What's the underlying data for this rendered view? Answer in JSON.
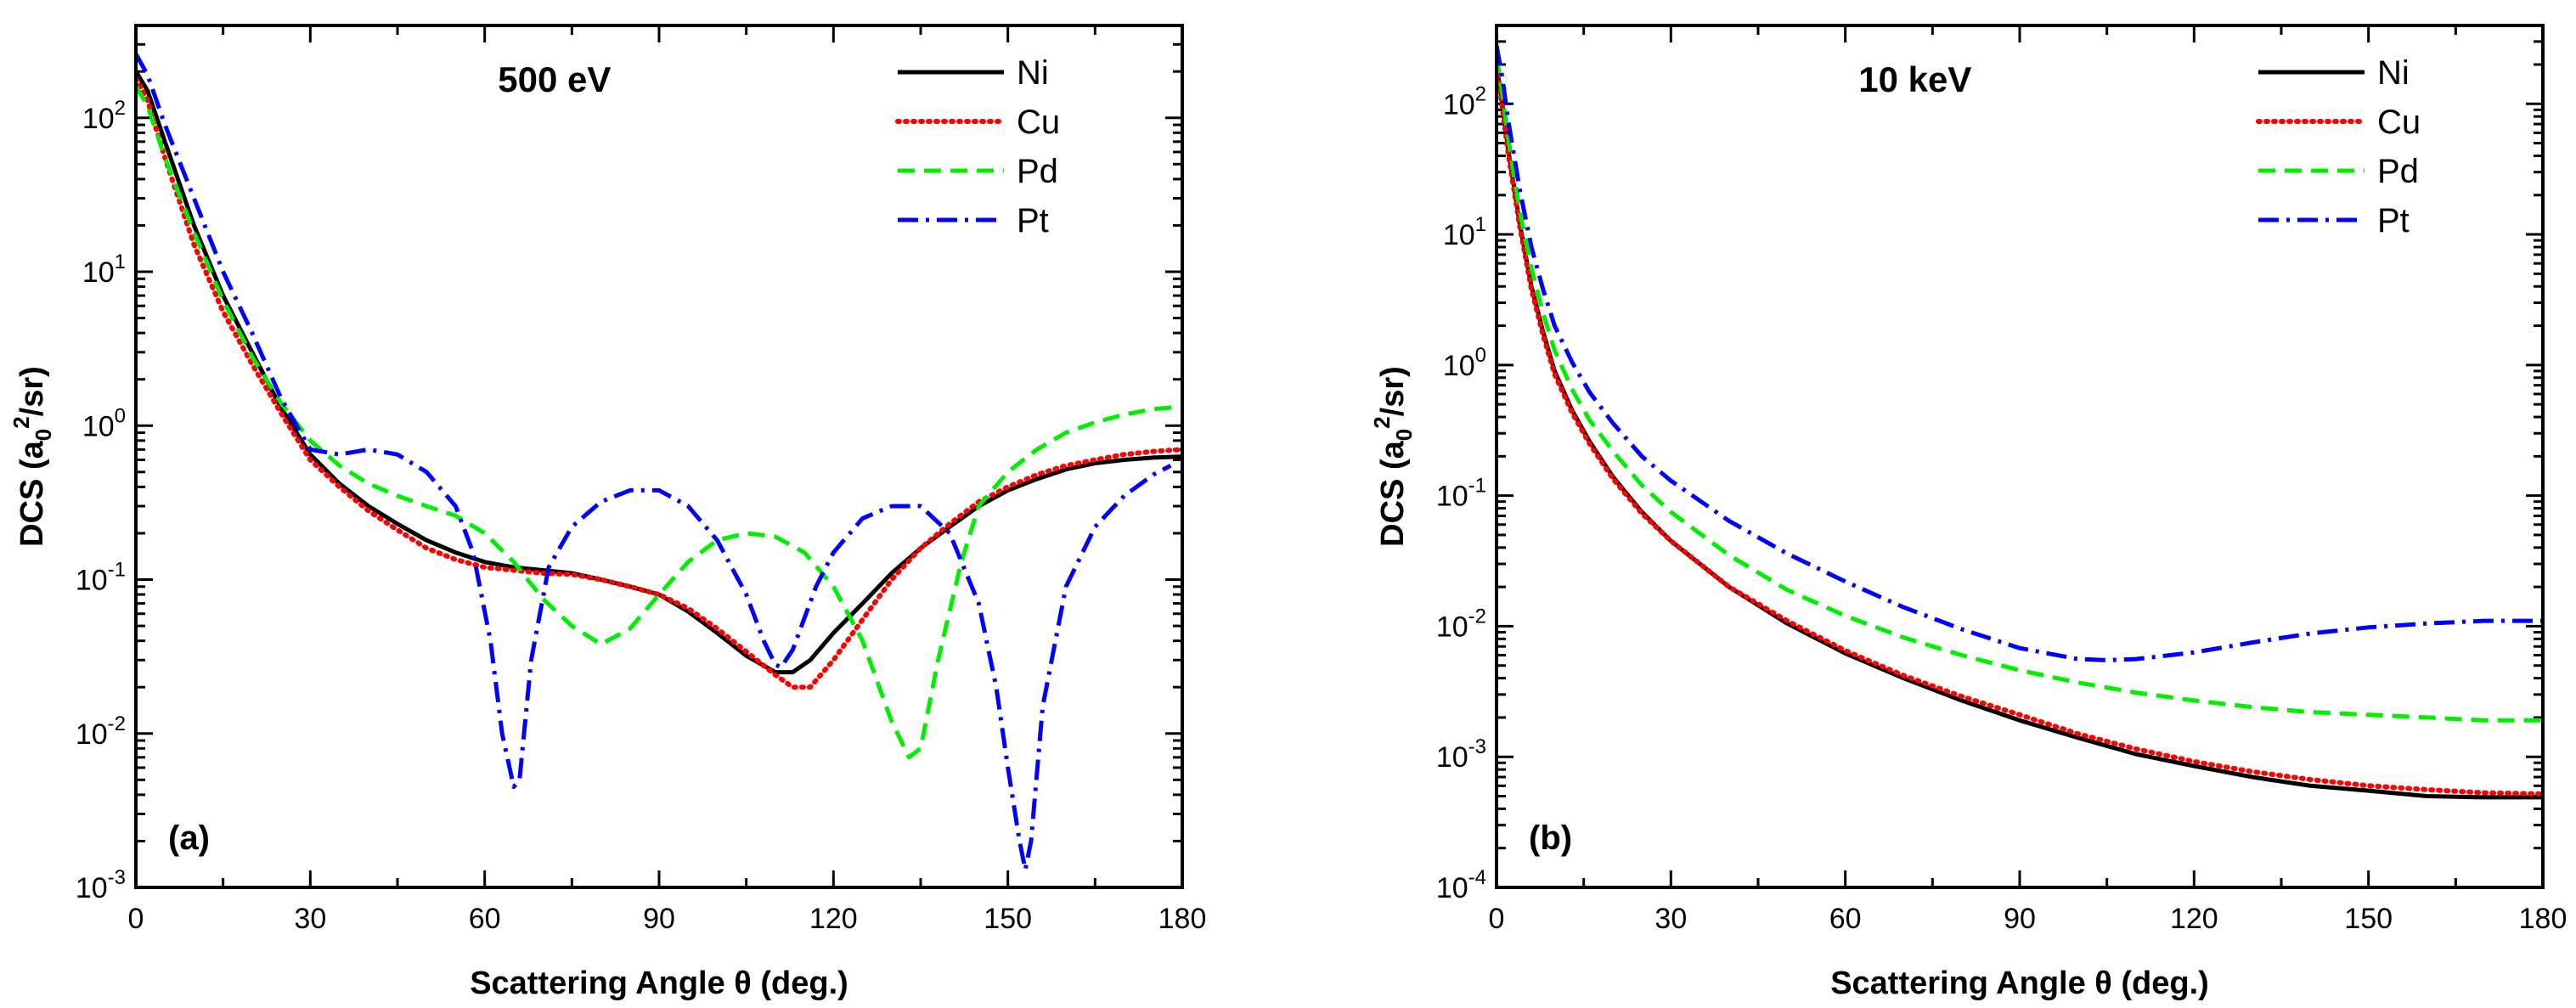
{
  "chart_data": [
    {
      "type": "line",
      "panel_label": "(a)",
      "title": "500 eV",
      "xlabel": "Scattering Angle θ (deg.)",
      "ylabel_main": "DCS (a",
      "ylabel_sub": "0",
      "ylabel_sup": "2",
      "ylabel_end": "/sr)",
      "yscale": "log",
      "xlim": [
        0,
        180
      ],
      "ylim_exp": [
        -3,
        2.6
      ],
      "xticks": [
        "0",
        "30",
        "60",
        "90",
        "120",
        "150",
        "180"
      ],
      "yticks": [
        {
          "base": "10",
          "exp": "-3"
        },
        {
          "base": "10",
          "exp": "-2"
        },
        {
          "base": "10",
          "exp": "-1"
        },
        {
          "base": "10",
          "exp": "0"
        },
        {
          "base": "10",
          "exp": "1"
        },
        {
          "base": "10",
          "exp": "2"
        }
      ],
      "series": [
        {
          "name": "Ni",
          "color": "#000000",
          "style": "solid",
          "x": [
            0,
            2,
            5,
            10,
            15,
            20,
            25,
            30,
            35,
            40,
            45,
            50,
            55,
            60,
            65,
            70,
            75,
            80,
            85,
            90,
            95,
            100,
            105,
            110,
            113,
            116,
            120,
            125,
            130,
            135,
            140,
            145,
            150,
            155,
            160,
            165,
            170,
            175,
            180
          ],
          "y": [
            200,
            150,
            70,
            20,
            7,
            3,
            1.3,
            0.65,
            0.42,
            0.3,
            0.23,
            0.18,
            0.15,
            0.13,
            0.12,
            0.115,
            0.11,
            0.1,
            0.09,
            0.08,
            0.062,
            0.045,
            0.032,
            0.025,
            0.025,
            0.03,
            0.045,
            0.07,
            0.11,
            0.16,
            0.22,
            0.3,
            0.38,
            0.45,
            0.52,
            0.57,
            0.6,
            0.62,
            0.63
          ]
        },
        {
          "name": "Cu",
          "color": "#ff0000",
          "style": "dotted",
          "x": [
            0,
            2,
            5,
            10,
            15,
            20,
            25,
            30,
            35,
            40,
            45,
            50,
            55,
            60,
            65,
            70,
            75,
            80,
            85,
            90,
            95,
            100,
            105,
            110,
            113,
            116,
            120,
            125,
            130,
            135,
            140,
            145,
            150,
            155,
            160,
            165,
            170,
            175,
            180
          ],
          "y": [
            180,
            130,
            55,
            15,
            5.5,
            2.5,
            1.2,
            0.6,
            0.4,
            0.28,
            0.21,
            0.16,
            0.135,
            0.12,
            0.115,
            0.11,
            0.108,
            0.1,
            0.09,
            0.08,
            0.065,
            0.048,
            0.034,
            0.024,
            0.02,
            0.02,
            0.03,
            0.055,
            0.1,
            0.16,
            0.23,
            0.32,
            0.4,
            0.48,
            0.55,
            0.6,
            0.65,
            0.68,
            0.7
          ]
        },
        {
          "name": "Pd",
          "color": "#00ee00",
          "style": "dashed",
          "x": [
            0,
            2,
            5,
            10,
            15,
            20,
            25,
            30,
            35,
            40,
            45,
            50,
            55,
            60,
            65,
            70,
            75,
            80,
            85,
            90,
            95,
            100,
            105,
            110,
            115,
            120,
            125,
            130,
            133,
            135,
            138,
            142,
            145,
            150,
            155,
            160,
            165,
            170,
            175,
            180
          ],
          "y": [
            160,
            120,
            55,
            18,
            6.5,
            2.8,
            1.4,
            0.8,
            0.55,
            0.42,
            0.35,
            0.3,
            0.26,
            0.2,
            0.13,
            0.075,
            0.05,
            0.038,
            0.048,
            0.08,
            0.13,
            0.18,
            0.2,
            0.19,
            0.15,
            0.09,
            0.04,
            0.012,
            0.007,
            0.008,
            0.03,
            0.13,
            0.3,
            0.5,
            0.7,
            0.9,
            1.05,
            1.18,
            1.28,
            1.33
          ]
        },
        {
          "name": "Pt",
          "color": "#0000ff",
          "style": "dashdot",
          "x": [
            0,
            2,
            5,
            10,
            15,
            20,
            25,
            30,
            35,
            40,
            45,
            50,
            55,
            58,
            61,
            63,
            65,
            66,
            68,
            71,
            75,
            80,
            85,
            90,
            95,
            100,
            105,
            108,
            110,
            111,
            113,
            117,
            120,
            125,
            130,
            135,
            140,
            145,
            148,
            150,
            152,
            153,
            154,
            156,
            160,
            165,
            170,
            175,
            178
          ],
          "y": [
            260,
            190,
            90,
            30,
            10,
            4,
            1.5,
            0.7,
            0.65,
            0.7,
            0.65,
            0.5,
            0.3,
            0.15,
            0.04,
            0.01,
            0.0045,
            0.005,
            0.03,
            0.12,
            0.22,
            0.32,
            0.38,
            0.38,
            0.3,
            0.18,
            0.08,
            0.04,
            0.028,
            0.027,
            0.035,
            0.09,
            0.15,
            0.25,
            0.3,
            0.3,
            0.2,
            0.07,
            0.02,
            0.006,
            0.002,
            0.0013,
            0.002,
            0.015,
            0.09,
            0.22,
            0.35,
            0.48,
            0.55
          ]
        }
      ]
    },
    {
      "type": "line",
      "panel_label": "(b)",
      "title": "10 keV",
      "xlabel": "Scattering Angle θ (deg.)",
      "ylabel_main": "DCS (a",
      "ylabel_sub": "0",
      "ylabel_sup": "2",
      "ylabel_end": "/sr)",
      "yscale": "log",
      "xlim": [
        0,
        180
      ],
      "ylim_exp": [
        -4,
        2.6
      ],
      "xticks": [
        "0",
        "30",
        "60",
        "90",
        "120",
        "150",
        "180"
      ],
      "yticks": [
        {
          "base": "10",
          "exp": "-4"
        },
        {
          "base": "10",
          "exp": "-3"
        },
        {
          "base": "10",
          "exp": "-2"
        },
        {
          "base": "10",
          "exp": "-1"
        },
        {
          "base": "10",
          "exp": "0"
        },
        {
          "base": "10",
          "exp": "1"
        },
        {
          "base": "10",
          "exp": "2"
        }
      ],
      "series": [
        {
          "name": "Ni",
          "color": "#000000",
          "style": "solid",
          "x": [
            0,
            1,
            2,
            4,
            6,
            8,
            10,
            13,
            16,
            20,
            25,
            30,
            40,
            50,
            60,
            70,
            80,
            90,
            100,
            110,
            120,
            130,
            140,
            150,
            160,
            170,
            180
          ],
          "y": [
            200,
            100,
            45,
            12,
            4,
            1.8,
            0.9,
            0.45,
            0.26,
            0.14,
            0.075,
            0.045,
            0.02,
            0.0105,
            0.0062,
            0.004,
            0.0027,
            0.0019,
            0.0014,
            0.00105,
            0.00085,
            0.0007,
            0.0006,
            0.00055,
            0.0005,
            0.00049,
            0.00049
          ]
        },
        {
          "name": "Cu",
          "color": "#ff0000",
          "style": "dotted",
          "x": [
            0,
            1,
            2,
            4,
            6,
            8,
            10,
            13,
            16,
            20,
            25,
            30,
            40,
            50,
            60,
            70,
            80,
            90,
            100,
            110,
            120,
            130,
            140,
            150,
            160,
            170,
            180
          ],
          "y": [
            190,
            95,
            42,
            11.5,
            3.8,
            1.7,
            0.85,
            0.43,
            0.25,
            0.135,
            0.073,
            0.045,
            0.02,
            0.011,
            0.0065,
            0.0042,
            0.0029,
            0.0021,
            0.0015,
            0.00115,
            0.00092,
            0.00077,
            0.00067,
            0.0006,
            0.00056,
            0.00053,
            0.00052
          ]
        },
        {
          "name": "Pd",
          "color": "#00ee00",
          "style": "dashed",
          "x": [
            0,
            1,
            2,
            4,
            6,
            8,
            10,
            13,
            16,
            20,
            25,
            30,
            40,
            50,
            60,
            70,
            80,
            90,
            100,
            110,
            120,
            130,
            140,
            150,
            160,
            170,
            180
          ],
          "y": [
            230,
            120,
            55,
            15,
            5.5,
            2.5,
            1.3,
            0.65,
            0.38,
            0.22,
            0.12,
            0.075,
            0.035,
            0.019,
            0.012,
            0.0082,
            0.006,
            0.0046,
            0.0037,
            0.0031,
            0.0027,
            0.0024,
            0.0022,
            0.0021,
            0.002,
            0.0019,
            0.0019
          ]
        },
        {
          "name": "Pt",
          "color": "#0000ff",
          "style": "dashdot",
          "x": [
            0,
            1,
            2,
            4,
            6,
            8,
            10,
            13,
            16,
            20,
            25,
            30,
            40,
            50,
            60,
            70,
            80,
            90,
            100,
            105,
            110,
            120,
            130,
            140,
            150,
            160,
            170,
            180
          ],
          "y": [
            280,
            160,
            75,
            22,
            8,
            3.8,
            2,
            1.05,
            0.62,
            0.36,
            0.2,
            0.13,
            0.064,
            0.036,
            0.022,
            0.014,
            0.0095,
            0.0068,
            0.0056,
            0.0055,
            0.0056,
            0.0063,
            0.0075,
            0.0088,
            0.0098,
            0.0105,
            0.011,
            0.011
          ]
        }
      ]
    }
  ]
}
